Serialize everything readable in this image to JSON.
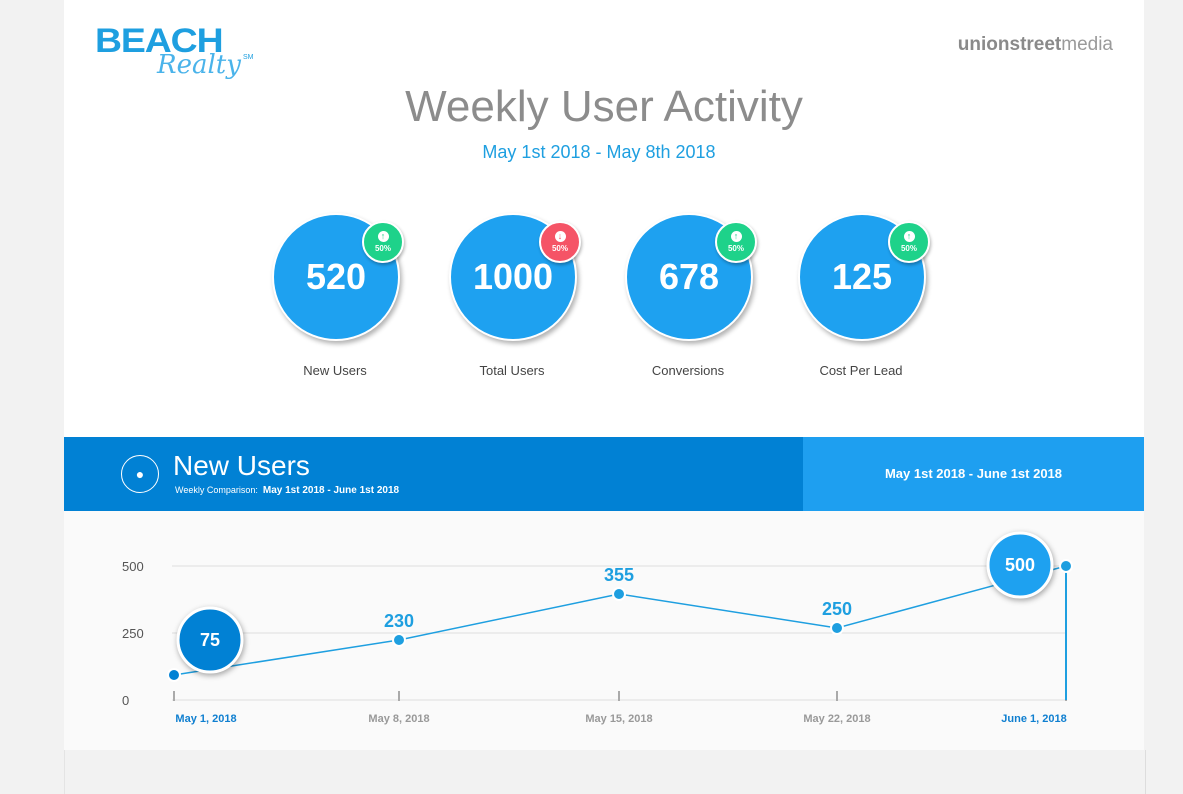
{
  "brand": {
    "logo": "BEACH Realty",
    "logo_sm": "SM",
    "partner_a": "unionstreet",
    "partner_b": "media"
  },
  "title": "Weekly User Activity",
  "date_range": "May 1st 2018 - May 8th 2018",
  "kpis": [
    {
      "value": "520",
      "label": "New Users",
      "change": "50%",
      "direction": "up"
    },
    {
      "value": "1000",
      "label": "Total Users",
      "change": "50%",
      "direction": "down"
    },
    {
      "value": "678",
      "label": "Conversions",
      "change": "50%",
      "direction": "up"
    },
    {
      "value": "125",
      "label": "Cost Per Lead",
      "change": "50%",
      "direction": "up"
    }
  ],
  "section": {
    "title": "New Users",
    "sub_label": "Weekly Comparison:",
    "sub_range": "May 1st 2018 - June 1st 2018",
    "range_right": "May 1st 2018 - June 1st 2018"
  },
  "chart_data": {
    "type": "line",
    "x": [
      "May 1, 2018",
      "May 8, 2018",
      "May 15, 2018",
      "May 22, 2018",
      "June 1, 2018"
    ],
    "values": [
      75,
      230,
      355,
      250,
      500
    ],
    "yticks": [
      "0",
      "250",
      "500"
    ],
    "ylim": [
      0,
      500
    ],
    "color": "#1e9fe0"
  }
}
